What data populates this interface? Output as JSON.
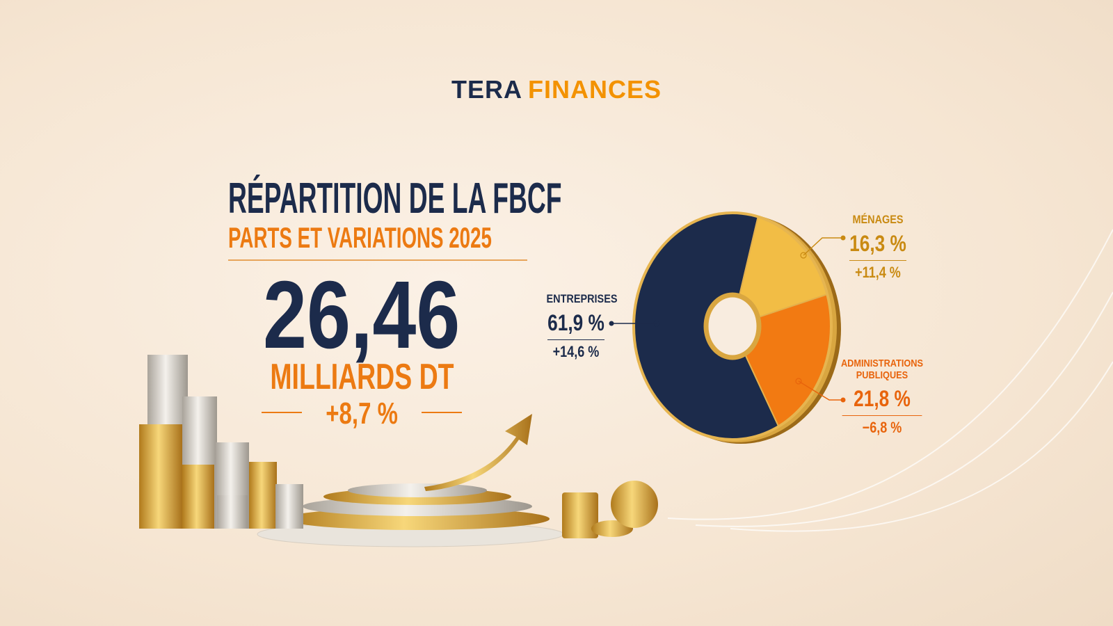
{
  "header": {
    "brand_first": "TERA",
    "brand_second": "FINANCES"
  },
  "headline": {
    "amount": "26,46",
    "unit": "MILLIARDS DT",
    "change": "+8,7 %"
  },
  "chart_data": {
    "type": "donut",
    "title": "RÉPARTITION DE LA FBCF",
    "subtitle": "PARTS ET VARIATIONS 2025",
    "categories": [
      "ENTREPRISES",
      "MÉNAGES",
      "ADMINISTRATIONS PUBLIQUES"
    ],
    "values": [
      61.9,
      16.3,
      21.8
    ],
    "value_labels": [
      "61,9 %",
      "16,3 %",
      "21,8 %"
    ],
    "variations": [
      "+14,6 %",
      "+11,4 %",
      "−6,8 %"
    ],
    "colors": [
      "#1c2b4b",
      "#f2bd45",
      "#f27a12"
    ]
  }
}
